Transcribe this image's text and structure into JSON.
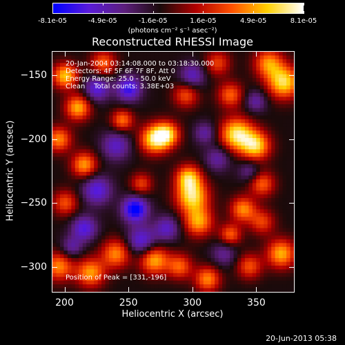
{
  "chart_data": {
    "type": "heatmap",
    "title": "Reconstructed RHESSI Image",
    "xlabel": "Heliocentric X (arcsec)",
    "ylabel": "Heliocentric Y (arcsec)",
    "xlim": [
      190,
      380
    ],
    "ylim": [
      -320,
      -131
    ],
    "x_ticks": [
      200,
      250,
      300,
      350
    ],
    "y_ticks": [
      -150,
      -200,
      -250,
      -300
    ],
    "colorbar": {
      "ticks": [
        "-8.1e-05",
        "-4.9e-05",
        "-1.6e-05",
        "1.6e-05",
        "4.9e-05",
        "8.1e-05"
      ],
      "range": [
        -8.1e-05,
        8.1e-05
      ],
      "units_label": "(photons cm⁻² s⁻¹ asec⁻²)",
      "colors": [
        "#0000ff",
        "#5a1bd9",
        "#5c1e7c",
        "#1a0a0a",
        "#b00000",
        "#ff5000",
        "#ffd000",
        "#ffffff"
      ]
    },
    "annotations": [
      "20-Jan-2004 03:14:08.000 to 03:18:30.000",
      "Detectors: 4F 5F 6F 7F 8F, Att 0",
      "Energy Range: 25.0 - 50.0 keV",
      "Clean    Total counts: 3.38E+03"
    ],
    "peak_label": "Position of Peak = [331,-196]",
    "peak": [
      331,
      -196
    ],
    "blobs": [
      {
        "x": 335,
        "y": -196,
        "v": 1.0,
        "s": 9
      },
      {
        "x": 350,
        "y": -205,
        "v": 0.9,
        "s": 8
      },
      {
        "x": 372,
        "y": -155,
        "v": 0.95,
        "s": 9
      },
      {
        "x": 360,
        "y": -140,
        "v": 0.7,
        "s": 8
      },
      {
        "x": 330,
        "y": -165,
        "v": 0.6,
        "s": 7
      },
      {
        "x": 295,
        "y": -165,
        "v": 0.55,
        "s": 7
      },
      {
        "x": 270,
        "y": -200,
        "v": 0.9,
        "s": 8
      },
      {
        "x": 280,
        "y": -196,
        "v": 0.85,
        "s": 7
      },
      {
        "x": 300,
        "y": -245,
        "v": 0.95,
        "s": 9
      },
      {
        "x": 297,
        "y": -230,
        "v": 0.8,
        "s": 7
      },
      {
        "x": 305,
        "y": -265,
        "v": 0.75,
        "s": 8
      },
      {
        "x": 270,
        "y": -295,
        "v": 0.8,
        "s": 8
      },
      {
        "x": 240,
        "y": -290,
        "v": 0.7,
        "s": 8
      },
      {
        "x": 220,
        "y": -305,
        "v": 0.75,
        "s": 8
      },
      {
        "x": 195,
        "y": -300,
        "v": 0.7,
        "s": 8
      },
      {
        "x": 200,
        "y": -250,
        "v": 0.55,
        "s": 7
      },
      {
        "x": 215,
        "y": -220,
        "v": 0.75,
        "s": 7
      },
      {
        "x": 195,
        "y": -200,
        "v": 0.7,
        "s": 7
      },
      {
        "x": 210,
        "y": -175,
        "v": 0.8,
        "s": 7
      },
      {
        "x": 200,
        "y": -150,
        "v": 0.85,
        "s": 7
      },
      {
        "x": 230,
        "y": -140,
        "v": 0.6,
        "s": 7
      },
      {
        "x": 245,
        "y": -185,
        "v": 0.65,
        "s": 6
      },
      {
        "x": 260,
        "y": -235,
        "v": 0.5,
        "s": 6
      },
      {
        "x": 355,
        "y": -235,
        "v": 0.6,
        "s": 7
      },
      {
        "x": 340,
        "y": -255,
        "v": 0.7,
        "s": 7
      },
      {
        "x": 330,
        "y": -275,
        "v": 0.6,
        "s": 6
      },
      {
        "x": 355,
        "y": -265,
        "v": 0.5,
        "s": 7
      },
      {
        "x": 370,
        "y": -290,
        "v": 0.8,
        "s": 8
      },
      {
        "x": 345,
        "y": -300,
        "v": 0.55,
        "s": 7
      },
      {
        "x": 312,
        "y": -310,
        "v": 0.7,
        "s": 7
      },
      {
        "x": 290,
        "y": -300,
        "v": 0.6,
        "s": 7
      },
      {
        "x": 320,
        "y": -140,
        "v": 0.5,
        "s": 7
      },
      {
        "x": 255,
        "y": -255,
        "v": -0.9,
        "s": 7
      },
      {
        "x": 260,
        "y": -280,
        "v": -0.6,
        "s": 8
      },
      {
        "x": 225,
        "y": -240,
        "v": -0.6,
        "s": 8
      },
      {
        "x": 240,
        "y": -205,
        "v": -0.5,
        "s": 8
      },
      {
        "x": 250,
        "y": -160,
        "v": -0.7,
        "s": 7
      },
      {
        "x": 225,
        "y": -160,
        "v": -0.6,
        "s": 7
      },
      {
        "x": 215,
        "y": -270,
        "v": -0.6,
        "s": 7
      },
      {
        "x": 280,
        "y": -270,
        "v": -0.5,
        "s": 7
      },
      {
        "x": 320,
        "y": -215,
        "v": -0.4,
        "s": 7
      },
      {
        "x": 310,
        "y": -195,
        "v": -0.4,
        "s": 6
      },
      {
        "x": 345,
        "y": -225,
        "v": -0.35,
        "s": 6
      },
      {
        "x": 300,
        "y": -150,
        "v": -0.5,
        "s": 7
      },
      {
        "x": 325,
        "y": -290,
        "v": -0.35,
        "s": 7
      },
      {
        "x": 205,
        "y": -285,
        "v": -0.4,
        "s": 6
      },
      {
        "x": 350,
        "y": -170,
        "v": -0.4,
        "s": 6
      }
    ]
  },
  "footer": {
    "timestamp": "20-Jun-2013 05:38"
  }
}
